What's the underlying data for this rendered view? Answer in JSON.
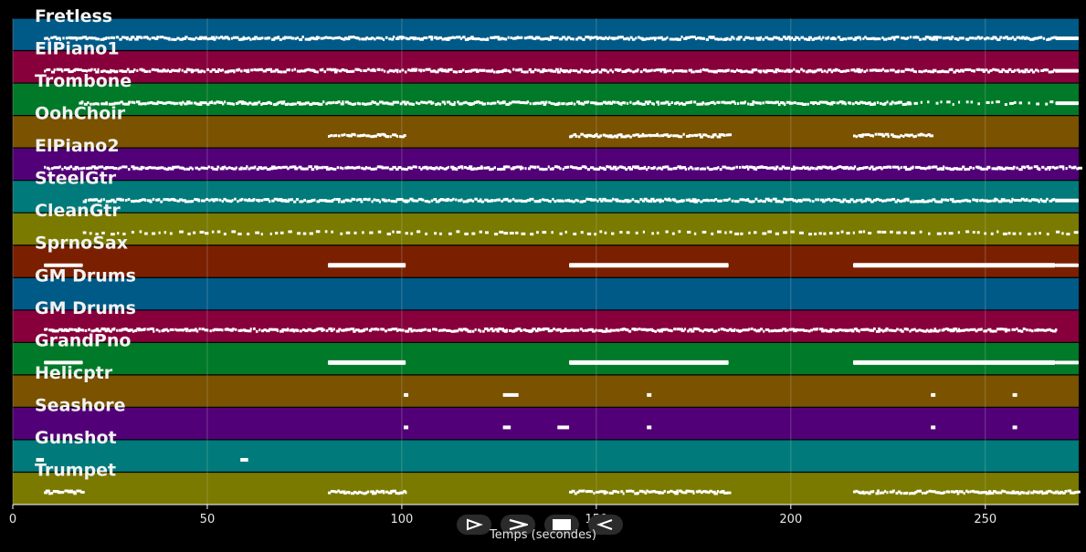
{
  "app": {
    "xlabel": "Temps (secondes)"
  },
  "colors": {
    "background": "#000000",
    "grid": "#cfcfcf",
    "note": "#ffffff",
    "label": "#f2f2f2"
  },
  "controls": [
    {
      "name": "play-button",
      "icon": "play-outline-icon"
    },
    {
      "name": "fast-forward-button",
      "icon": "chevron-right-icon"
    },
    {
      "name": "stop-button",
      "icon": "stop-icon"
    },
    {
      "name": "rewind-button",
      "icon": "rewind-outline-icon"
    }
  ],
  "chart_data": {
    "type": "piano-roll",
    "xlabel": "Temps (secondes)",
    "xlim": [
      0,
      274
    ],
    "xticks": [
      0,
      50,
      100,
      150,
      200,
      250
    ],
    "grid": true,
    "tracks": [
      {
        "name": "Fretless",
        "color": "#005a87",
        "segments": [
          [
            8,
            268,
            "dense"
          ],
          [
            268,
            274,
            "block"
          ]
        ]
      },
      {
        "name": "ElPiano1",
        "color": "#87003c",
        "segments": [
          [
            8,
            268,
            "dense"
          ],
          [
            268,
            274,
            "block"
          ]
        ]
      },
      {
        "name": "Trombone",
        "color": "#007a28",
        "segments": [
          [
            17,
            230,
            "dense"
          ],
          [
            230,
            268,
            "sparse"
          ],
          [
            268,
            274,
            "block"
          ]
        ]
      },
      {
        "name": "OohChoir",
        "color": "#7a5200",
        "segments": [
          [
            81,
            101,
            "dense"
          ],
          [
            143,
            184,
            "dense"
          ],
          [
            216,
            236,
            "dense"
          ]
        ]
      },
      {
        "name": "ElPiano2",
        "color": "#520078",
        "segments": [
          [
            8,
            274,
            "dense"
          ]
        ]
      },
      {
        "name": "SteelGtr",
        "color": "#007a7a",
        "segments": [
          [
            18,
            268,
            "dense"
          ],
          [
            268,
            274,
            "block"
          ]
        ]
      },
      {
        "name": "CleanGtr",
        "color": "#7a7a00",
        "segments": [
          [
            18,
            274,
            "sparse"
          ]
        ]
      },
      {
        "name": "SprnoSax",
        "color": "#7a2000",
        "segments": [
          [
            8,
            18,
            "block"
          ],
          [
            81,
            101,
            "block"
          ],
          [
            143,
            184,
            "block"
          ],
          [
            216,
            268,
            "block"
          ],
          [
            268,
            274,
            "block"
          ]
        ]
      },
      {
        "name": "GM Drums",
        "color": "#005a87",
        "segments": []
      },
      {
        "name": "GM Drums",
        "color": "#87003c",
        "segments": [
          [
            8,
            268,
            "dense"
          ]
        ]
      },
      {
        "name": "GrandPno",
        "color": "#007a28",
        "segments": [
          [
            8,
            18,
            "block"
          ],
          [
            81,
            101,
            "block"
          ],
          [
            143,
            184,
            "block"
          ],
          [
            216,
            268,
            "block"
          ],
          [
            268,
            274,
            "block"
          ]
        ]
      },
      {
        "name": "Helicptr",
        "color": "#7a5200",
        "segments": [
          [
            100.5,
            101.5,
            "dot"
          ],
          [
            126,
            130,
            "dot"
          ],
          [
            163,
            164,
            "dot"
          ],
          [
            236,
            237,
            "dot"
          ],
          [
            257,
            258,
            "dot"
          ]
        ]
      },
      {
        "name": "Seashore",
        "color": "#520078",
        "segments": [
          [
            100.5,
            101.5,
            "dot"
          ],
          [
            126,
            128,
            "dot"
          ],
          [
            140,
            143,
            "dot"
          ],
          [
            163,
            164,
            "dot"
          ],
          [
            236,
            237,
            "dot"
          ],
          [
            257,
            258,
            "dot"
          ]
        ]
      },
      {
        "name": "Gunshot",
        "color": "#007a7a",
        "segments": [
          [
            6,
            8,
            "dot"
          ],
          [
            58.5,
            60.5,
            "dot"
          ]
        ]
      },
      {
        "name": "Trumpet",
        "color": "#7a7a00",
        "segments": [
          [
            8,
            18,
            "dense"
          ],
          [
            81,
            101,
            "dense"
          ],
          [
            143,
            184,
            "dense"
          ],
          [
            216,
            274,
            "dense"
          ]
        ]
      }
    ]
  }
}
